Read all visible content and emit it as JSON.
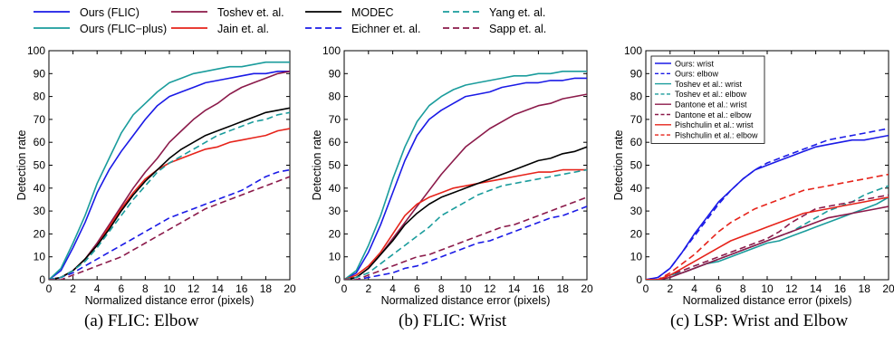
{
  "shared_legend": [
    {
      "name": "Ours (FLIC)",
      "color": "#1a1ae6",
      "dash": "solid"
    },
    {
      "name": "Toshev et. al.",
      "color": "#8b1a4a",
      "dash": "solid"
    },
    {
      "name": "MODEC",
      "color": "#000000",
      "dash": "solid"
    },
    {
      "name": "Yang et. al.",
      "color": "#1a9c9c",
      "dash": "dashed"
    },
    {
      "name": "Ours (FLIC−plus)",
      "color": "#1a9c9c",
      "dash": "solid"
    },
    {
      "name": "Jain et. al.",
      "color": "#e6231a",
      "dash": "solid"
    },
    {
      "name": "Eichner et. al.",
      "color": "#1a1ae6",
      "dash": "dashed"
    },
    {
      "name": "Sapp et. al.",
      "color": "#8b1a4a",
      "dash": "dashed"
    }
  ],
  "chart_data": [
    {
      "type": "line",
      "caption": "(a) FLIC: Elbow",
      "xlabel": "Normalized distance error (pixels)",
      "ylabel": "Detection rate",
      "xlim": [
        0,
        20
      ],
      "ylim": [
        0,
        100
      ],
      "xticks": [
        0,
        2,
        4,
        6,
        8,
        10,
        12,
        14,
        16,
        18,
        20
      ],
      "yticks": [
        0,
        10,
        20,
        30,
        40,
        50,
        60,
        70,
        80,
        90,
        100
      ],
      "grid": false,
      "legend": "none",
      "x": [
        0,
        1,
        2,
        3,
        4,
        5,
        6,
        7,
        8,
        9,
        10,
        11,
        12,
        13,
        14,
        15,
        16,
        17,
        18,
        19,
        20
      ],
      "series": [
        {
          "name": "Ours (FLIC)",
          "color": "#1a1ae6",
          "dash": "solid",
          "values": [
            0,
            4,
            14,
            25,
            38,
            48,
            56,
            63,
            70,
            76,
            80,
            82,
            84,
            86,
            87,
            88,
            89,
            90,
            90,
            91,
            91
          ]
        },
        {
          "name": "Ours (FLIC−plus)",
          "color": "#1a9c9c",
          "dash": "solid",
          "values": [
            0,
            5,
            16,
            28,
            42,
            53,
            64,
            72,
            77,
            82,
            86,
            88,
            90,
            91,
            92,
            93,
            93,
            94,
            95,
            95,
            95
          ]
        },
        {
          "name": "Toshev et. al.",
          "color": "#8b1a4a",
          "dash": "solid",
          "values": [
            0,
            1,
            4,
            9,
            16,
            24,
            32,
            40,
            47,
            53,
            60,
            65,
            70,
            74,
            77,
            81,
            84,
            86,
            88,
            90,
            91
          ]
        },
        {
          "name": "Jain et. al.",
          "color": "#e6231a",
          "dash": "solid",
          "values": [
            0,
            1,
            4,
            9,
            15,
            23,
            31,
            38,
            44,
            48,
            51,
            53,
            55,
            57,
            58,
            60,
            61,
            62,
            63,
            65,
            66
          ]
        },
        {
          "name": "MODEC",
          "color": "#000000",
          "dash": "solid",
          "values": [
            0,
            1,
            4,
            9,
            15,
            22,
            30,
            37,
            43,
            48,
            53,
            57,
            60,
            63,
            65,
            67,
            69,
            71,
            73,
            74,
            75
          ]
        },
        {
          "name": "Eichner et. al.",
          "color": "#1a1ae6",
          "dash": "dashed",
          "values": [
            0,
            1,
            3,
            6,
            9,
            12,
            15,
            18,
            21,
            24,
            27,
            29,
            31,
            33,
            35,
            37,
            39,
            42,
            45,
            47,
            48
          ]
        },
        {
          "name": "Yang et. al.",
          "color": "#1a9c9c",
          "dash": "dashed",
          "values": [
            0,
            1,
            4,
            8,
            14,
            21,
            28,
            35,
            41,
            47,
            51,
            54,
            57,
            60,
            63,
            65,
            67,
            69,
            70,
            72,
            73
          ]
        },
        {
          "name": "Sapp et. al.",
          "color": "#8b1a4a",
          "dash": "dashed",
          "values": [
            0,
            0,
            2,
            4,
            6,
            8,
            10,
            13,
            16,
            19,
            22,
            25,
            28,
            31,
            33,
            35,
            37,
            39,
            41,
            43,
            45
          ]
        }
      ]
    },
    {
      "type": "line",
      "caption": "(b) FLIC: Wrist",
      "xlabel": "Normalized distance error (pixels)",
      "ylabel": "Detection rate",
      "xlim": [
        0,
        20
      ],
      "ylim": [
        0,
        100
      ],
      "xticks": [
        0,
        2,
        4,
        6,
        8,
        10,
        12,
        14,
        16,
        18,
        20
      ],
      "yticks": [
        0,
        10,
        20,
        30,
        40,
        50,
        60,
        70,
        80,
        90,
        100
      ],
      "grid": false,
      "legend": "none",
      "x": [
        0,
        1,
        2,
        3,
        4,
        5,
        6,
        7,
        8,
        9,
        10,
        11,
        12,
        13,
        14,
        15,
        16,
        17,
        18,
        19,
        20
      ],
      "series": [
        {
          "name": "Ours (FLIC)",
          "color": "#1a1ae6",
          "dash": "solid",
          "values": [
            0,
            3,
            12,
            24,
            38,
            52,
            63,
            70,
            74,
            77,
            80,
            81,
            82,
            84,
            85,
            86,
            86,
            87,
            87,
            88,
            88
          ]
        },
        {
          "name": "Ours (FLIC−plus)",
          "color": "#1a9c9c",
          "dash": "solid",
          "values": [
            0,
            4,
            15,
            28,
            44,
            58,
            69,
            76,
            80,
            83,
            85,
            86,
            87,
            88,
            89,
            89,
            90,
            90,
            91,
            91,
            91
          ]
        },
        {
          "name": "Toshev et. al.",
          "color": "#8b1a4a",
          "dash": "solid",
          "values": [
            0,
            1,
            5,
            11,
            18,
            25,
            32,
            39,
            46,
            52,
            58,
            62,
            66,
            69,
            72,
            74,
            76,
            77,
            79,
            80,
            81
          ]
        },
        {
          "name": "Jain et. al.",
          "color": "#e6231a",
          "dash": "solid",
          "values": [
            0,
            2,
            6,
            12,
            20,
            28,
            33,
            36,
            38,
            40,
            41,
            42,
            43,
            44,
            45,
            46,
            47,
            47,
            48,
            48,
            48
          ]
        },
        {
          "name": "MODEC",
          "color": "#000000",
          "dash": "solid",
          "values": [
            0,
            1,
            5,
            11,
            17,
            24,
            29,
            33,
            36,
            38,
            40,
            42,
            44,
            46,
            48,
            50,
            52,
            53,
            55,
            56,
            58
          ]
        },
        {
          "name": "Eichner et. al.",
          "color": "#1a1ae6",
          "dash": "dashed",
          "values": [
            0,
            0,
            1,
            2,
            3,
            5,
            6,
            8,
            10,
            12,
            14,
            16,
            17,
            19,
            21,
            23,
            25,
            27,
            28,
            30,
            32
          ]
        },
        {
          "name": "Yang et. al.",
          "color": "#1a9c9c",
          "dash": "dashed",
          "values": [
            0,
            1,
            3,
            7,
            11,
            15,
            19,
            23,
            28,
            31,
            34,
            37,
            39,
            41,
            42,
            43,
            44,
            45,
            46,
            47,
            48
          ]
        },
        {
          "name": "Sapp et. al.",
          "color": "#8b1a4a",
          "dash": "dashed",
          "values": [
            0,
            0,
            2,
            4,
            6,
            8,
            10,
            11,
            13,
            15,
            17,
            19,
            21,
            23,
            24,
            26,
            28,
            30,
            32,
            34,
            36
          ]
        }
      ]
    },
    {
      "type": "line",
      "caption": "(c) LSP: Wrist and Elbow",
      "xlabel": "Normalized distance error (pixels)",
      "ylabel": "Detection rate",
      "xlim": [
        0,
        20
      ],
      "ylim": [
        0,
        100
      ],
      "xticks": [
        0,
        2,
        4,
        6,
        8,
        10,
        12,
        14,
        16,
        18,
        20
      ],
      "yticks": [
        0,
        10,
        20,
        30,
        40,
        50,
        60,
        70,
        80,
        90,
        100
      ],
      "grid": false,
      "legend": "top-left",
      "x": [
        0,
        1,
        2,
        3,
        4,
        5,
        6,
        7,
        8,
        9,
        10,
        11,
        12,
        13,
        14,
        15,
        16,
        17,
        18,
        19,
        20
      ],
      "series": [
        {
          "name": "Ours: wrist",
          "color": "#1a1ae6",
          "dash": "solid",
          "values": [
            0,
            1,
            5,
            12,
            20,
            27,
            34,
            39,
            44,
            48,
            50,
            52,
            54,
            56,
            58,
            59,
            60,
            61,
            61,
            62,
            63
          ]
        },
        {
          "name": "Ours: elbow",
          "color": "#1a1ae6",
          "dash": "dashed",
          "values": [
            0,
            1,
            5,
            12,
            19,
            26,
            33,
            39,
            44,
            48,
            51,
            53,
            55,
            57,
            59,
            61,
            62,
            63,
            64,
            65,
            66
          ]
        },
        {
          "name": "Toshev et al.: wrist",
          "color": "#1a9c9c",
          "dash": "solid",
          "values": [
            0,
            0,
            2,
            3,
            5,
            7,
            8,
            10,
            12,
            14,
            16,
            17,
            19,
            21,
            23,
            25,
            27,
            29,
            31,
            33,
            36
          ]
        },
        {
          "name": "Toshev et al.: elbow",
          "color": "#1a9c9c",
          "dash": "dashed",
          "values": [
            0,
            0,
            2,
            3,
            5,
            7,
            9,
            11,
            13,
            15,
            17,
            19,
            21,
            24,
            27,
            30,
            32,
            34,
            37,
            39,
            41
          ]
        },
        {
          "name": "Dantone et al.: wrist",
          "color": "#8b1a4a",
          "dash": "solid",
          "values": [
            0,
            0,
            1,
            3,
            5,
            7,
            9,
            11,
            13,
            15,
            17,
            19,
            21,
            23,
            25,
            27,
            28,
            29,
            30,
            31,
            32
          ]
        },
        {
          "name": "Dantone et al.: elbow",
          "color": "#8b1a4a",
          "dash": "dashed",
          "values": [
            0,
            0,
            2,
            4,
            6,
            8,
            10,
            12,
            14,
            16,
            18,
            21,
            25,
            28,
            31,
            32,
            33,
            34,
            35,
            36,
            37
          ]
        },
        {
          "name": "Pishchulin et al.: wrist",
          "color": "#e6231a",
          "dash": "solid",
          "values": [
            0,
            0,
            2,
            5,
            8,
            11,
            14,
            17,
            19,
            21,
            23,
            25,
            27,
            29,
            30,
            31,
            32,
            33,
            34,
            35,
            36
          ]
        },
        {
          "name": "Pishchulin et al.: elbow",
          "color": "#e6231a",
          "dash": "dashed",
          "values": [
            0,
            0,
            3,
            7,
            11,
            16,
            21,
            25,
            28,
            31,
            33,
            35,
            37,
            39,
            40,
            41,
            42,
            43,
            44,
            45,
            46
          ]
        }
      ]
    }
  ]
}
